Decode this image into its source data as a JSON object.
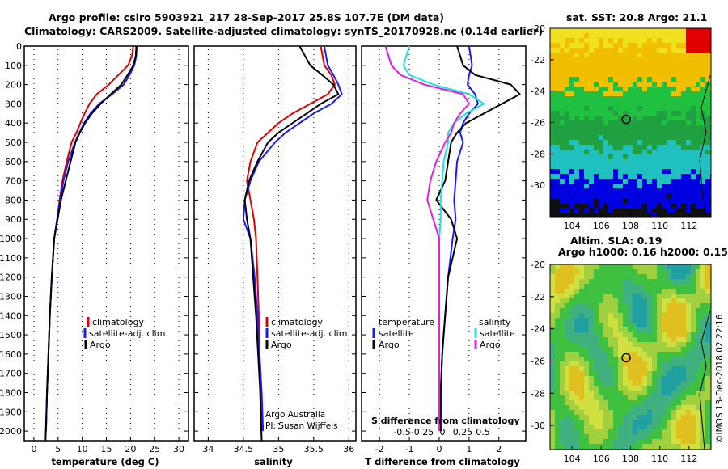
{
  "header": {
    "line1": "Argo profile: csiro 5903921_217 28-Sep-2017 25.8S 107.7E (DM data)",
    "line2": "Climatology: CARS2009. Satellite-adjusted climatology: synTS_20170928.nc (0.14d earlier)"
  },
  "colors": {
    "climatology": "#e00000",
    "satellite": "#1a1aff",
    "argo": "#000000",
    "t_satellite": "#1a1aff",
    "s_satellite": "#22e0e0",
    "s_argo": "#e020e0"
  },
  "legend": {
    "climatology": "climatology",
    "satellite": "satellite-adj. clim.",
    "argo": "Argo",
    "temperature_head": "temperature",
    "salinity_head": "salinity",
    "satellite_short": "satellite"
  },
  "notes": {
    "argo_australia": "Argo Australia",
    "pi": "PI: Susan Wijffels",
    "s_diff_label": "S difference from climatology",
    "credit": "©IMOS 13-Dec-2018 02:22:16"
  },
  "maps": {
    "sst_title": "sat. SST: 20.8 Argo: 21.1",
    "sla_title1": "Altim. SLA: 0.19",
    "sla_title2": "Argo h1000: 0.16 h2000: 0.15",
    "lon_ticks": [
      "104",
      "106",
      "108",
      "110",
      "112"
    ],
    "lat_ticks": [
      "-20",
      "-22",
      "-24",
      "-26",
      "-28",
      "-30"
    ],
    "float_position": {
      "lon": 107.7,
      "lat": -25.8
    }
  },
  "chart_data": [
    {
      "type": "line",
      "name": "temperature profile",
      "xlabel": "temperature (deg C)",
      "xlim": [
        -2,
        32
      ],
      "ylim": [
        2050,
        0
      ],
      "xticks": [
        "0",
        "5",
        "10",
        "15",
        "20",
        "25",
        "30"
      ],
      "xtick_values": [
        0,
        5,
        10,
        15,
        20,
        25,
        30
      ],
      "yticks": [
        "0",
        "100",
        "200",
        "300",
        "400",
        "500",
        "600",
        "700",
        "800",
        "900",
        "1000",
        "1100",
        "1200",
        "1300",
        "1400",
        "1500",
        "1600",
        "1700",
        "1800",
        "1900",
        "2000"
      ],
      "series": [
        {
          "name": "climatology",
          "x": [
            20.6,
            20.3,
            19.5,
            17.5,
            15.5,
            13.0,
            11.5,
            10.5,
            9.6,
            8.8,
            7.8,
            6.8,
            5.9,
            5.3,
            4.8,
            4.2,
            3.7,
            3.3,
            3.0,
            2.7,
            2.5
          ],
          "y": [
            0,
            50,
            100,
            150,
            200,
            250,
            300,
            350,
            400,
            450,
            500,
            600,
            700,
            800,
            900,
            1000,
            1200,
            1400,
            1600,
            1800,
            2000
          ]
        },
        {
          "name": "satellite-adj. clim.",
          "x": [
            21.3,
            21.2,
            20.8,
            19.8,
            18.6,
            16.2,
            13.5,
            11.7,
            10.4,
            9.4,
            8.5,
            7.1,
            6.1,
            5.4,
            4.8,
            4.2,
            3.7,
            3.3,
            3.0,
            2.7,
            2.5
          ],
          "y": [
            0,
            50,
            100,
            150,
            200,
            250,
            300,
            350,
            400,
            450,
            500,
            600,
            700,
            800,
            900,
            1000,
            1200,
            1400,
            1600,
            1800,
            2000
          ]
        },
        {
          "name": "Argo",
          "x": [
            21.2,
            21.1,
            20.6,
            19.4,
            18.1,
            15.9,
            13.8,
            12.0,
            10.6,
            9.5,
            8.6,
            7.6,
            6.6,
            5.6,
            4.9,
            4.2,
            3.7,
            3.3,
            3.0,
            2.7,
            2.4
          ],
          "y": [
            0,
            50,
            100,
            150,
            200,
            250,
            300,
            350,
            400,
            450,
            500,
            600,
            700,
            800,
            900,
            1000,
            1200,
            1400,
            1600,
            1800,
            2050
          ]
        }
      ]
    },
    {
      "type": "line",
      "name": "salinity profile",
      "xlabel": "salinity",
      "xlim": [
        33.8,
        36.1
      ],
      "ylim": [
        2050,
        0
      ],
      "xticks": [
        "34",
        "34.5",
        "35",
        "35.5",
        "36"
      ],
      "xtick_values": [
        34,
        34.5,
        35,
        35.5,
        36
      ],
      "series": [
        {
          "name": "climatology",
          "x": [
            35.6,
            35.65,
            35.75,
            35.8,
            35.7,
            35.45,
            35.2,
            35.0,
            34.85,
            34.7,
            34.6,
            34.55,
            34.6,
            34.65,
            34.68,
            34.7,
            34.72,
            34.73,
            34.74,
            34.75
          ],
          "y": [
            0,
            100,
            150,
            200,
            250,
            300,
            350,
            400,
            450,
            500,
            600,
            700,
            800,
            900,
            1000,
            1200,
            1400,
            1600,
            1800,
            2000
          ]
        },
        {
          "name": "satellite-adj. clim.",
          "x": [
            35.65,
            35.7,
            35.78,
            35.85,
            35.9,
            35.75,
            35.5,
            35.3,
            35.1,
            34.95,
            34.72,
            34.6,
            34.52,
            34.5,
            34.6,
            34.66,
            34.7,
            34.73,
            34.76,
            34.78
          ],
          "y": [
            0,
            100,
            150,
            200,
            250,
            300,
            350,
            400,
            450,
            500,
            600,
            700,
            800,
            900,
            1000,
            1200,
            1400,
            1600,
            1800,
            2000
          ]
        },
        {
          "name": "Argo",
          "x": [
            35.3,
            35.45,
            35.62,
            35.78,
            35.85,
            35.6,
            35.4,
            35.2,
            35.0,
            34.85,
            34.7,
            34.58,
            34.52,
            34.55,
            34.6,
            34.64,
            34.68,
            34.71,
            34.74,
            34.76
          ],
          "y": [
            0,
            100,
            150,
            200,
            250,
            300,
            350,
            400,
            450,
            500,
            600,
            700,
            800,
            900,
            1000,
            1200,
            1400,
            1600,
            1800,
            2050
          ]
        }
      ]
    },
    {
      "type": "line",
      "name": "difference from climatology",
      "xlabel": "T difference from climatology",
      "xlim": [
        -2.6,
        2.9
      ],
      "ylim": [
        2050,
        0
      ],
      "xticks": [
        "-2",
        "-1",
        "0",
        "1",
        "2"
      ],
      "xtick_values": [
        -2,
        -1,
        0,
        1,
        2
      ],
      "s_xticks": [
        "-0.5",
        "-0.25",
        "0",
        "0.25",
        "0.5"
      ],
      "s_xtick_values": [
        -0.5,
        -0.25,
        0,
        0.25,
        0.5
      ],
      "series": [
        {
          "name": "temperature satellite",
          "x": [
            1.0,
            1.1,
            1.0,
            0.95,
            1.2,
            1.3,
            1.0,
            0.8,
            0.7,
            0.8,
            0.6,
            0.55,
            0.5,
            0.55,
            0.45,
            0.3,
            0.2,
            0.1,
            0.05,
            0.05
          ],
          "y": [
            0,
            100,
            150,
            200,
            250,
            300,
            350,
            400,
            450,
            500,
            600,
            700,
            800,
            900,
            1000,
            1200,
            1400,
            1600,
            1800,
            2000
          ]
        },
        {
          "name": "temperature Argo",
          "x": [
            0.6,
            0.8,
            1.2,
            2.4,
            2.7,
            2.1,
            1.5,
            0.9,
            0.6,
            0.4,
            0.3,
            0.2,
            -0.1,
            0.4,
            0.6,
            0.3,
            0.2,
            0.1,
            0.05,
            0.05
          ],
          "y": [
            0,
            100,
            150,
            200,
            250,
            300,
            350,
            400,
            450,
            500,
            600,
            700,
            800,
            900,
            1000,
            1200,
            1400,
            1600,
            1800,
            2000
          ]
        },
        {
          "name": "salinity satellite",
          "x": [
            -1.0,
            -1.2,
            -1.0,
            -0.2,
            1.0,
            1.5,
            0.9,
            0.5,
            0.3,
            0.3,
            0.15,
            0.1,
            0.05,
            0.05,
            0.0,
            0.0,
            0.0,
            0.0,
            0.0,
            0.0
          ],
          "y": [
            0,
            100,
            150,
            200,
            250,
            300,
            350,
            400,
            450,
            500,
            600,
            700,
            800,
            900,
            1000,
            1200,
            1400,
            1600,
            1800,
            2000
          ]
        },
        {
          "name": "salinity Argo",
          "x": [
            -1.8,
            -1.6,
            -1.3,
            -0.5,
            0.8,
            1.0,
            0.7,
            0.5,
            0.4,
            0.2,
            -0.1,
            -0.3,
            -0.4,
            -0.2,
            0.0,
            0.0,
            0.0,
            0.0,
            0.0,
            0.0
          ],
          "y": [
            0,
            100,
            150,
            200,
            250,
            300,
            350,
            400,
            450,
            500,
            600,
            700,
            800,
            900,
            1000,
            1200,
            1400,
            1600,
            1800,
            2000
          ]
        }
      ]
    }
  ]
}
